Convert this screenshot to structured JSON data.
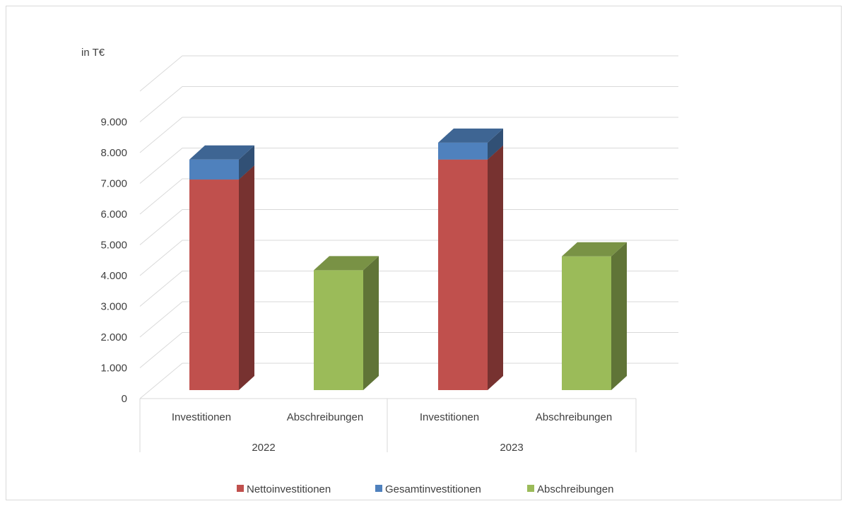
{
  "chart_data": {
    "type": "bar",
    "stacked": true,
    "three_d": true,
    "unit_label": "in T€",
    "y_ticks": [
      "0",
      "1.000",
      "2.000",
      "3.000",
      "4.000",
      "5.000",
      "6.000",
      "7.000",
      "8.000",
      "9.000"
    ],
    "ylim": [
      0,
      10000
    ],
    "grid": true,
    "legend_position": "bottom",
    "groups": [
      {
        "label": "2022",
        "categories": [
          "Investitionen",
          "Abschreibungen"
        ]
      },
      {
        "label": "2023",
        "categories": [
          "Investitionen",
          "Abschreibungen"
        ]
      }
    ],
    "categories": [
      "Investitionen",
      "Abschreibungen",
      "Investitionen",
      "Abschreibungen"
    ],
    "series": [
      {
        "name": "Nettoinvestitionen",
        "color": "#c0504d",
        "values": [
          6850,
          0,
          7500,
          0
        ]
      },
      {
        "name": "Gesamtinvestitionen",
        "color": "#4f81bd",
        "values": [
          650,
          0,
          550,
          0
        ]
      },
      {
        "name": "Abschreibungen",
        "color": "#9bbb59",
        "values": [
          0,
          3900,
          0,
          4350
        ]
      }
    ]
  }
}
